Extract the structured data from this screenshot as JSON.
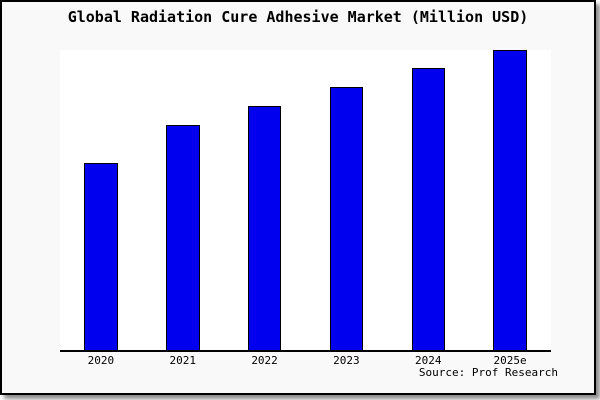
{
  "figure": {
    "title": "Global Radiation Cure Adhesive Market (Million USD)",
    "source_note": "Source: Prof Research"
  },
  "chart_data": {
    "type": "bar",
    "title": "Global Radiation Cure Adhesive Market (Million USD)",
    "categories": [
      "2020",
      "2021",
      "2022",
      "2023",
      "2024",
      "2025e"
    ],
    "values_relative_pct_of_2025e": [
      62.4,
      75.0,
      81.4,
      87.8,
      94.1,
      100.0
    ],
    "xlabel": "",
    "ylabel": "",
    "value_axis_labeled": false,
    "yaxis_ticks": "none",
    "grid": false,
    "legend": "none",
    "annotation": "Source: Prof Research",
    "bar_fill_color": "#0000ee",
    "bar_border_color": "#000000",
    "plot_background": "#ffffff",
    "figure_background": "#f9f9f9",
    "axis_line_color": "#000000"
  }
}
